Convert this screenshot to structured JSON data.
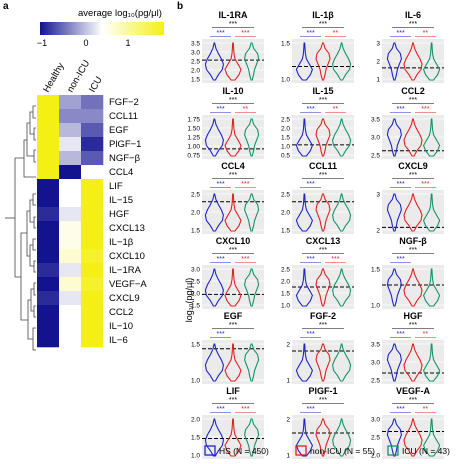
{
  "panel_labels": {
    "a": "a",
    "b": "b"
  },
  "heatmap": {
    "legend_title": "average log₁₀(pg/μl)",
    "legend_ticks": [
      "−1",
      "0",
      "1"
    ],
    "columns": [
      "Healthy",
      "non-ICU",
      "ICU"
    ],
    "rows": [
      "FGF−2",
      "CCL11",
      "EGF",
      "PlGF−1",
      "NGF−β",
      "CCL4",
      "LIF",
      "IL−15",
      "HGF",
      "CXCL13",
      "IL−1β",
      "CXCL10",
      "IL−1RA",
      "VEGF−A",
      "CXCL9",
      "CCL2",
      "IL−10",
      "IL−6"
    ],
    "colors": {
      "low": "#13138f",
      "mid": "#ffffff",
      "high": "#f4f014"
    }
  },
  "chart_data": {
    "type": "heatmap",
    "title": "",
    "columns": [
      "Healthy",
      "non-ICU",
      "ICU"
    ],
    "rows": [
      "FGF-2",
      "CCL11",
      "EGF",
      "PlGF-1",
      "NGF-β",
      "CCL4",
      "LIF",
      "IL-15",
      "HGF",
      "CXCL13",
      "IL-1β",
      "CXCL10",
      "IL-1RA",
      "VEGF-A",
      "CXCL9",
      "CCL2",
      "IL-10",
      "IL-6"
    ],
    "values": [
      [
        1.0,
        -0.4,
        -0.6
      ],
      [
        1.0,
        -0.5,
        -0.5
      ],
      [
        1.0,
        -0.3,
        -0.7
      ],
      [
        1.0,
        -0.1,
        -0.9
      ],
      [
        1.0,
        -0.3,
        -0.7
      ],
      [
        1.0,
        -1.0,
        0.0
      ],
      [
        -1.0,
        0.0,
        1.0
      ],
      [
        -1.0,
        0.0,
        1.0
      ],
      [
        -0.9,
        -0.1,
        1.0
      ],
      [
        -1.0,
        0.1,
        1.0
      ],
      [
        -1.0,
        0.1,
        1.0
      ],
      [
        -1.0,
        0.2,
        0.9
      ],
      [
        -0.9,
        -0.1,
        1.0
      ],
      [
        -1.0,
        0.2,
        0.9
      ],
      [
        -0.9,
        -0.1,
        1.0
      ],
      [
        -1.0,
        0.0,
        1.0
      ],
      [
        -1.0,
        0.0,
        1.0
      ],
      [
        -1.0,
        0.0,
        1.0
      ]
    ],
    "color_range": [
      -1,
      1
    ],
    "legend": "top"
  },
  "violin_panels": {
    "y_axis_label": "log₁₀(pg/μl)",
    "stars": {
      "hs_non": "***",
      "hs_icu": "***"
    },
    "panels": [
      {
        "name": "IL-1RA",
        "ticks": [
          "3.5",
          "3.0",
          "2.5",
          "2.0",
          "1.5"
        ],
        "lo": 1.3,
        "hi": 3.8,
        "dashed": 2.6,
        "non_icu": "***"
      },
      {
        "name": "IL-1β",
        "ticks": [
          "1.5",
          "1.0"
        ],
        "lo": 0.6,
        "hi": 1.8,
        "dashed": 1.05,
        "non_icu": "**"
      },
      {
        "name": "IL-6",
        "ticks": [
          "3",
          "2",
          "1"
        ],
        "lo": 0.5,
        "hi": 3.4,
        "dashed": 1.5,
        "non_icu": "**"
      },
      {
        "name": "IL-10",
        "ticks": [
          "1.75",
          "1.50",
          "1.25",
          "1.00",
          "0.75"
        ],
        "lo": 0.6,
        "hi": 1.9,
        "dashed": 0.9,
        "non_icu": "**"
      },
      {
        "name": "IL-15",
        "ticks": [
          "2.5",
          "2.0",
          "1.5",
          "1.0",
          "0.5"
        ],
        "lo": 0.3,
        "hi": 2.8,
        "dashed": 1.1,
        "non_icu": "**"
      },
      {
        "name": "CCL2",
        "ticks": [
          "3.5",
          "3.0",
          "2.5"
        ],
        "lo": 2.2,
        "hi": 3.8,
        "dashed": 2.5,
        "non_icu": "***"
      },
      {
        "name": "CCL4",
        "ticks": [
          "2.5",
          "2.0",
          "1.5"
        ],
        "lo": 1.3,
        "hi": 2.8,
        "dashed": 2.4,
        "non_icu": "***"
      },
      {
        "name": "CCL11",
        "ticks": [
          "2.5",
          "2.0",
          "1.5"
        ],
        "lo": 1.3,
        "hi": 2.8,
        "dashed": 2.4,
        "non_icu": ""
      },
      {
        "name": "CXCL9",
        "ticks": [
          "3",
          "2"
        ],
        "lo": 1.5,
        "hi": 3.5,
        "dashed": 1.8,
        "non_icu": "***"
      },
      {
        "name": "CXCL10",
        "ticks": [
          "3.0",
          "2.5",
          "2.0",
          "1.5"
        ],
        "lo": 1.3,
        "hi": 3.4,
        "dashed": 2.0,
        "non_icu": "***"
      },
      {
        "name": "CXCL13",
        "ticks": [
          "2.5",
          "2.0",
          "1.5",
          "1.0"
        ],
        "lo": 0.8,
        "hi": 2.8,
        "dashed": 1.8,
        "non_icu": "***"
      },
      {
        "name": "NGF-β",
        "ticks": [
          "1.5",
          "1.0"
        ],
        "lo": 0.7,
        "hi": 1.8,
        "dashed": 1.3,
        "non_icu": ""
      },
      {
        "name": "EGF",
        "ticks": [
          "1.5",
          "1.0"
        ],
        "lo": 0.8,
        "hi": 1.8,
        "dashed": 1.6,
        "non_icu": ""
      },
      {
        "name": "FGF-2",
        "ticks": [
          "2",
          "1"
        ],
        "lo": 0.5,
        "hi": 2.5,
        "dashed": 2.0,
        "non_icu": ""
      },
      {
        "name": "HGF",
        "ticks": [
          "3.5",
          "3.0",
          "2.5"
        ],
        "lo": 2.2,
        "hi": 3.8,
        "dashed": 2.6,
        "non_icu": "**"
      },
      {
        "name": "LIF",
        "ticks": [
          "2.0",
          "1.5",
          "1.0"
        ],
        "lo": 0.8,
        "hi": 2.3,
        "dashed": 1.5,
        "non_icu": "***"
      },
      {
        "name": "PlGF-1",
        "ticks": [
          "2",
          "1"
        ],
        "lo": 0.3,
        "hi": 2.5,
        "dashed": 1.6,
        "non_icu": ""
      },
      {
        "name": "VEGF-A",
        "ticks": [
          "3.0",
          "2.5",
          "2.0"
        ],
        "lo": 1.7,
        "hi": 3.3,
        "dashed": 2.7,
        "non_icu": "**"
      }
    ]
  },
  "legend": {
    "items": [
      {
        "label": "HS (N = 450)",
        "color": "#1f24c8"
      },
      {
        "label": "non-ICU (N = 55)",
        "color": "#e0221f"
      },
      {
        "label": "ICU (N = 43)",
        "color": "#16936a"
      }
    ]
  }
}
